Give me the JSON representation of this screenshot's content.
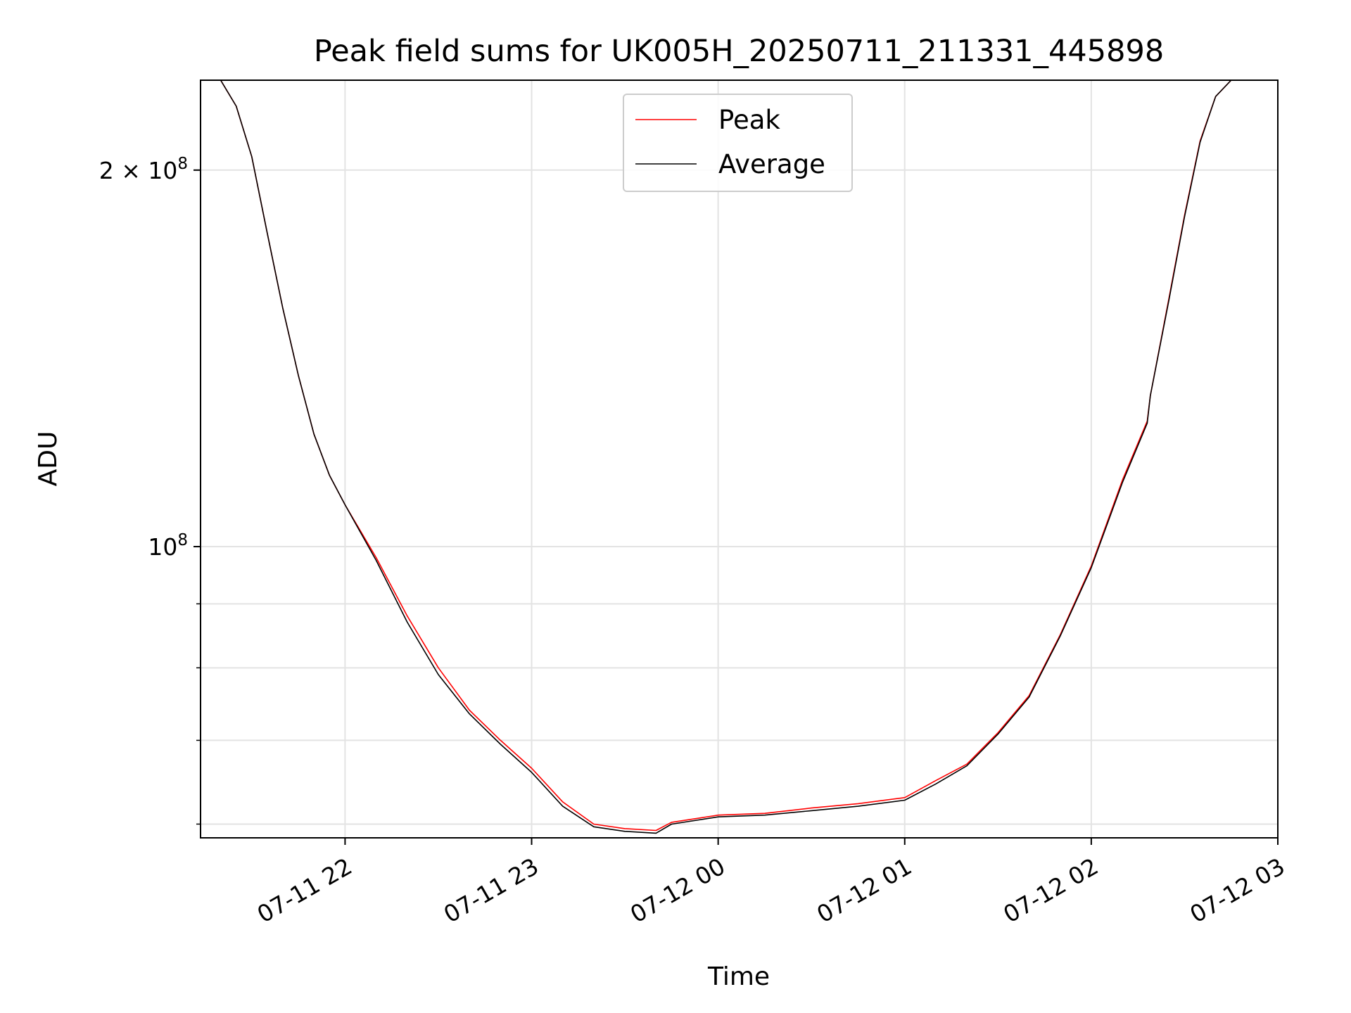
{
  "chart_data": {
    "type": "line",
    "title": "Peak field sums for UK005H_20250711_211331_445898",
    "xlabel": "Time",
    "ylabel": "ADU",
    "yscale": "log",
    "xlim": [
      "07-11 21:13:31",
      "07-12 03:00:00"
    ],
    "ylim": [
      58500000,
      236000000
    ],
    "x_ticks": [
      "07-11 22",
      "07-11 23",
      "07-12 00",
      "07-12 01",
      "07-12 02",
      "07-12 03"
    ],
    "y_major_ticks": [
      {
        "value": 200000000,
        "mantissa": "2",
        "times": "×",
        "base": "10",
        "exp": "8"
      },
      {
        "value": 100000000,
        "mantissa": "",
        "times": "",
        "base": "10",
        "exp": "8"
      }
    ],
    "y_minor_ticks": [
      60000000,
      70000000,
      80000000,
      90000000
    ],
    "grid": true,
    "legend_position": "upper center",
    "series": [
      {
        "name": "Peak",
        "color": "#ff0000",
        "x": [
          "07-11 21:13:31",
          "07-11 21:20:00",
          "07-11 21:25:00",
          "07-11 21:30:00",
          "07-11 21:35:00",
          "07-11 21:40:00",
          "07-11 21:45:00",
          "07-11 21:50:00",
          "07-11 21:55:00",
          "07-11 22:00:00",
          "07-11 22:10:00",
          "07-11 22:20:00",
          "07-11 22:30:00",
          "07-11 22:40:00",
          "07-11 22:50:00",
          "07-11 23:00:00",
          "07-11 23:10:00",
          "07-11 23:20:00",
          "07-11 23:30:00",
          "07-11 23:40:00",
          "07-11 23:45:00",
          "07-12 00:00:00",
          "07-12 00:15:00",
          "07-12 00:30:00",
          "07-12 00:45:00",
          "07-12 01:00:00",
          "07-12 01:10:00",
          "07-12 01:20:00",
          "07-12 01:30:00",
          "07-12 01:40:00",
          "07-12 01:50:00",
          "07-12 02:00:00",
          "07-12 02:10:00",
          "07-12 02:18:00",
          "07-12 02:19:00",
          "07-12 02:25:00",
          "07-12 02:30:00",
          "07-12 02:35:00",
          "07-12 02:40:00",
          "07-12 02:45:00",
          "07-12 02:50:00",
          "07-12 03:00:00"
        ],
        "y": [
          236000000,
          236000000,
          225000000,
          205000000,
          178000000,
          155000000,
          137000000,
          123000000,
          114000000,
          108000000,
          98000000,
          88000000,
          80000000,
          74000000,
          70000000,
          66500000,
          62500000,
          60000000,
          59500000,
          59300000,
          60200000,
          61000000,
          61200000,
          61800000,
          62300000,
          63000000,
          65000000,
          67000000,
          71000000,
          76000000,
          85000000,
          96500000,
          113000000,
          126000000,
          132000000,
          158000000,
          184000000,
          211000000,
          229000000,
          236000000,
          236000000,
          236000000
        ]
      },
      {
        "name": "Average",
        "color": "#000000",
        "x": [
          "07-11 21:13:31",
          "07-11 21:20:00",
          "07-11 21:25:00",
          "07-11 21:30:00",
          "07-11 21:35:00",
          "07-11 21:40:00",
          "07-11 21:45:00",
          "07-11 21:50:00",
          "07-11 21:55:00",
          "07-11 22:00:00",
          "07-11 22:10:00",
          "07-11 22:20:00",
          "07-11 22:30:00",
          "07-11 22:40:00",
          "07-11 22:50:00",
          "07-11 23:00:00",
          "07-11 23:10:00",
          "07-11 23:20:00",
          "07-11 23:30:00",
          "07-11 23:40:00",
          "07-11 23:45:00",
          "07-12 00:00:00",
          "07-12 00:15:00",
          "07-12 00:30:00",
          "07-12 00:45:00",
          "07-12 01:00:00",
          "07-12 01:10:00",
          "07-12 01:20:00",
          "07-12 01:30:00",
          "07-12 01:40:00",
          "07-12 01:50:00",
          "07-12 02:00:00",
          "07-12 02:10:00",
          "07-12 02:18:00",
          "07-12 02:19:00",
          "07-12 02:25:00",
          "07-12 02:30:00",
          "07-12 02:35:00",
          "07-12 02:40:00",
          "07-12 02:45:00",
          "07-12 02:50:00",
          "07-12 03:00:00"
        ],
        "y": [
          236000000,
          236000000,
          225000000,
          205000000,
          178000000,
          155000000,
          137000000,
          123000000,
          114000000,
          108000000,
          97500000,
          87000000,
          79000000,
          73500000,
          69500000,
          66000000,
          62000000,
          59700000,
          59200000,
          59000000,
          60000000,
          60800000,
          61000000,
          61500000,
          62000000,
          62700000,
          64600000,
          66800000,
          70800000,
          75800000,
          84800000,
          96200000,
          112500000,
          125500000,
          132000000,
          157500000,
          183500000,
          210500000,
          229000000,
          236000000,
          236000000,
          236000000
        ]
      }
    ]
  }
}
